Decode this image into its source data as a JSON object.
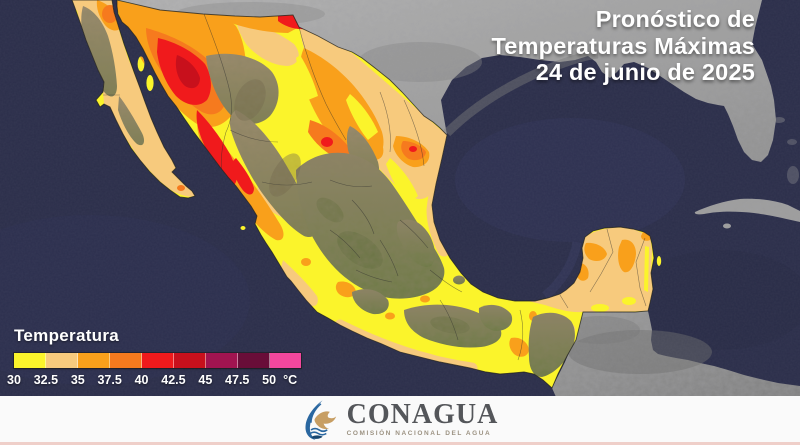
{
  "title": {
    "line1": "Pronóstico de",
    "line2": "Temperaturas Máximas",
    "line3": "24 de junio de 2025"
  },
  "legend": {
    "label": "Temperatura",
    "unit": "°C",
    "ticks": [
      "30",
      "32.5",
      "35",
      "37.5",
      "40",
      "42.5",
      "45",
      "47.5",
      "50"
    ],
    "colors": [
      "#FBF42B",
      "#F7CA7D",
      "#F9A01B",
      "#F67A1E",
      "#F01A1C",
      "#C8101C",
      "#A11450",
      "#690D38",
      "#F2479D"
    ]
  },
  "map": {
    "ocean_color": "#2B2E4A",
    "neighbor_land_color": "#A9A9A9",
    "country_shown": "México",
    "neighbors_shown_gray": [
      "Estados Unidos",
      "Cuba",
      "Guatemala",
      "Belice",
      "Honduras"
    ]
  },
  "footer": {
    "org": "CONAGUA",
    "org_subtitle": "COMISIÓN NACIONAL DEL AGUA",
    "accent_color": "#EFCFC9",
    "logo_blue": "#2A67A0",
    "logo_dark_blue": "#17466F",
    "logo_gold": "#C79E63"
  }
}
